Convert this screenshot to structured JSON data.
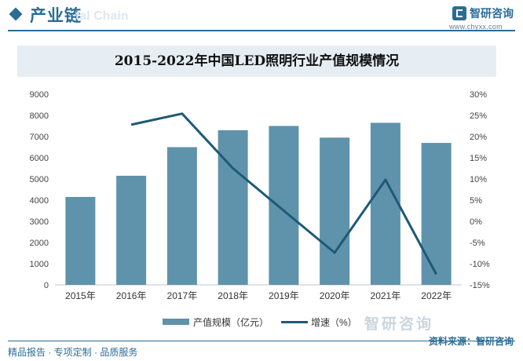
{
  "header": {
    "section_title": "产业链",
    "ghost_text": "tal Chain",
    "brand_name": "智研咨询",
    "brand_url": "www.chyxx.com"
  },
  "colors": {
    "bar": "#5f93ab",
    "line": "#1d5a78",
    "accent": "#2b6c95"
  },
  "chart_data": {
    "type": "bar",
    "title": "2015-2022年中国LED照明行业产值规模情况",
    "categories": [
      "2015年",
      "2016年",
      "2017年",
      "2018年",
      "2019年",
      "2020年",
      "2021年",
      "2022年"
    ],
    "series": [
      {
        "name": "产值规模（亿元）",
        "type": "bar",
        "axis": "left",
        "values": [
          4150,
          5150,
          6500,
          7300,
          7500,
          6950,
          7650,
          6700
        ]
      },
      {
        "name": "增速（%）",
        "type": "line",
        "axis": "right",
        "values": [
          null,
          22.8,
          25.4,
          12.5,
          2.5,
          -7.4,
          9.8,
          -12.5
        ]
      }
    ],
    "y_left": {
      "min": 0,
      "max": 9000,
      "ticks": [
        "0",
        "1000",
        "2000",
        "3000",
        "4000",
        "5000",
        "6000",
        "7000",
        "8000",
        "9000"
      ]
    },
    "y_right": {
      "min": -15,
      "max": 30,
      "ticks": [
        "-15%",
        "-10%",
        "-5%",
        "0%",
        "5%",
        "10%",
        "15%",
        "20%",
        "25%",
        "30%"
      ]
    },
    "legend_position": "bottom",
    "grid": false
  },
  "watermark": {
    "text": "智研咨询"
  },
  "footer": {
    "left": "精品报告 · 专项定制 · 品质服务",
    "right": "资料来源：智研咨询"
  }
}
